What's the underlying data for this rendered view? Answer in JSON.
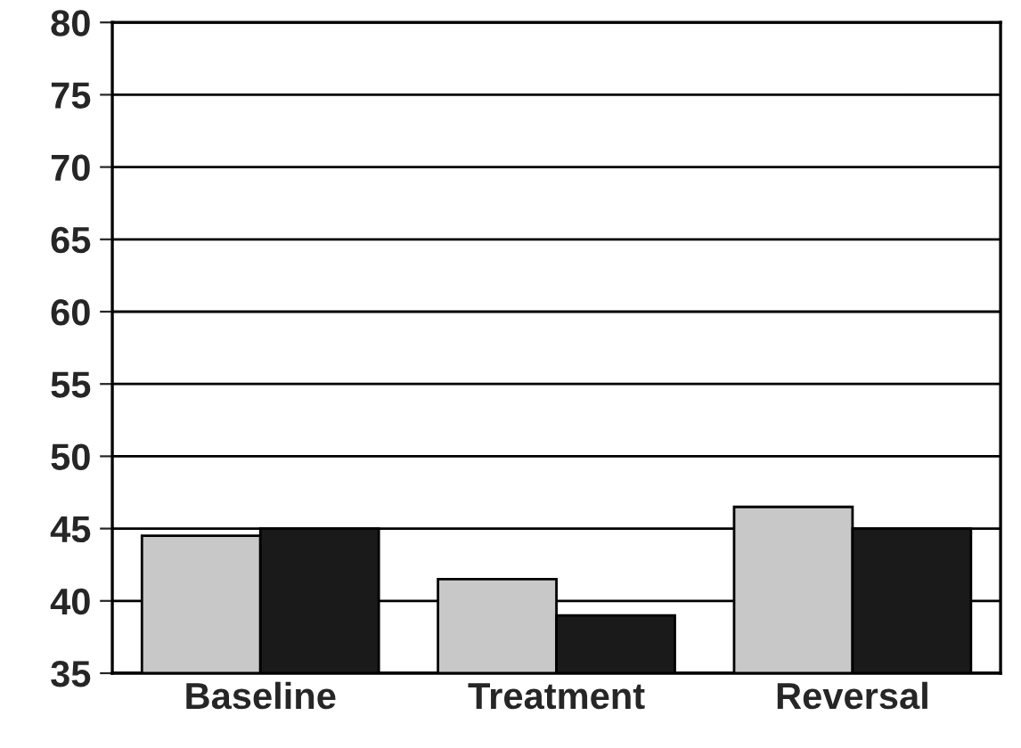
{
  "chart_data": {
    "type": "bar",
    "categories": [
      "Baseline",
      "Treatment",
      "Reversal"
    ],
    "series": [
      {
        "color": "#c8c8c8",
        "values": [
          44.5,
          41.5,
          46.5
        ]
      },
      {
        "color": "#1a1a1a",
        "values": [
          45,
          39,
          45
        ]
      }
    ],
    "ylim": [
      35,
      80
    ],
    "yticks": [
      35,
      40,
      45,
      50,
      55,
      60,
      65,
      70,
      75,
      80
    ],
    "grid": "y",
    "legend": false
  }
}
